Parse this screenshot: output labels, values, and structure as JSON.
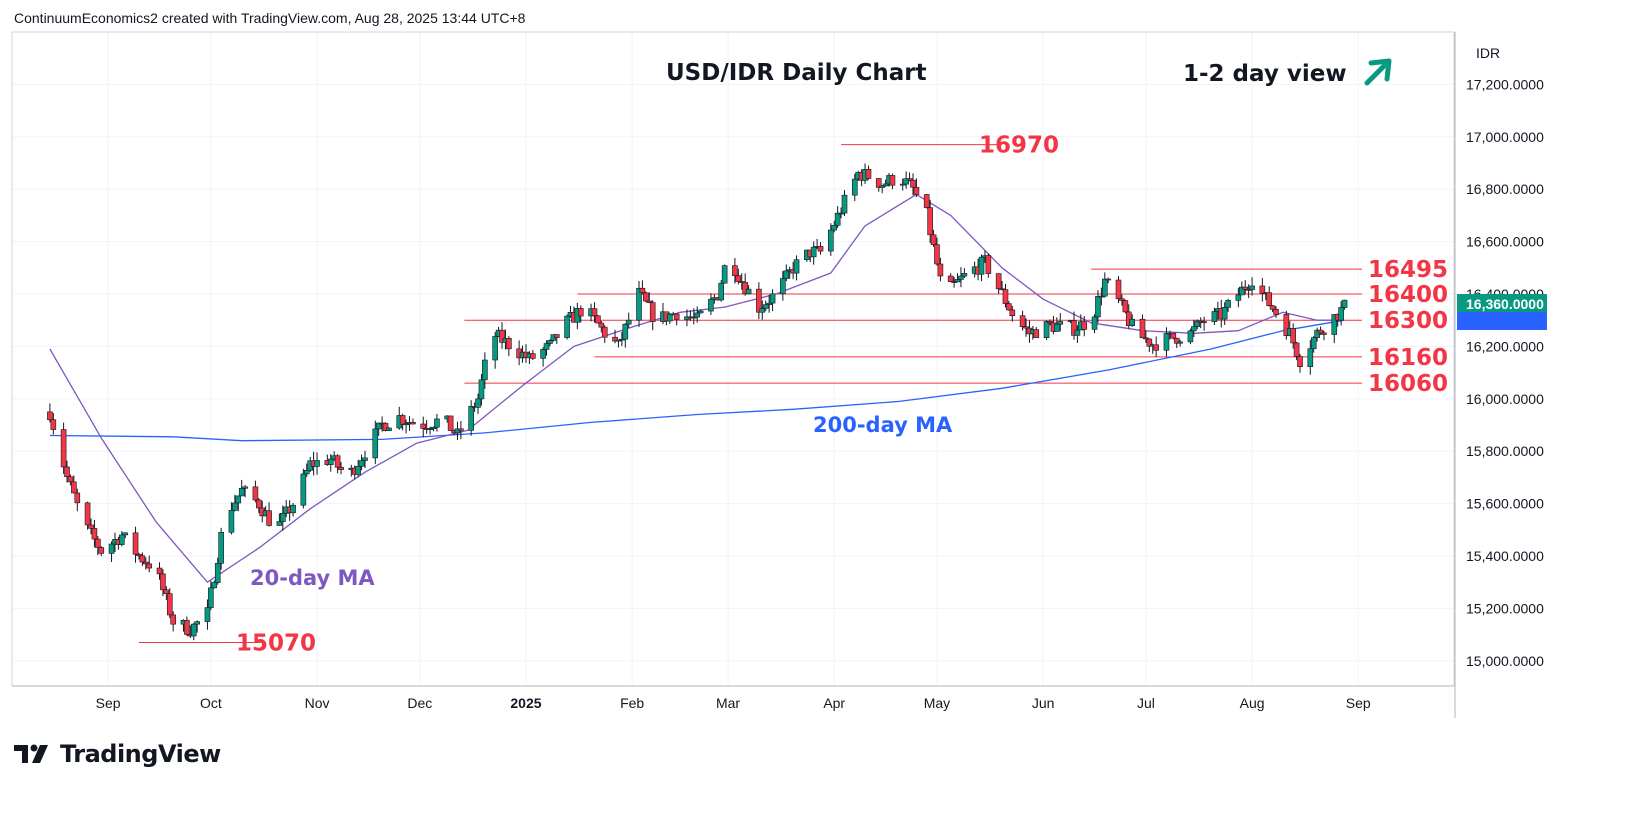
{
  "attribution": "ContinuumEconomics2 created with TradingView.com, Aug 28, 2025 13:44 UTC+8",
  "logo_text": "TradingView",
  "currency_label": "IDR",
  "chart_title": "USD/IDR Daily Chart",
  "view_label": "1-2 day view",
  "colors": {
    "up": "#089981",
    "down": "#f23645",
    "ma200": "#2962ff",
    "ma20": "#7e57c2",
    "level": "#f23645",
    "arrow": "#089981"
  },
  "chart_data": {
    "type": "candlestick",
    "title": "USD/IDR Daily Chart",
    "ylim": [
      14900,
      17400
    ],
    "y_ticks": [
      "15,000.0000",
      "15,200.0000",
      "15,400.0000",
      "15,600.0000",
      "15,800.0000",
      "16,000.0000",
      "16,200.0000",
      "16,400.0000",
      "16,600.0000",
      "16,800.0000",
      "17,000.0000",
      "17,200.0000"
    ],
    "x_labels": [
      "Sep",
      "Oct",
      "Nov",
      "Dec",
      "2025",
      "Feb",
      "Mar",
      "Apr",
      "May",
      "Jun",
      "Jul",
      "Aug",
      "Sep"
    ],
    "last_price_label": "16,360.0000",
    "levels": [
      {
        "label": "16970",
        "value": 16970
      },
      {
        "label": "16495",
        "value": 16495
      },
      {
        "label": "16400",
        "value": 16400
      },
      {
        "label": "16300",
        "value": 16300
      },
      {
        "label": "16160",
        "value": 16160
      },
      {
        "label": "16060",
        "value": 16060
      },
      {
        "label": "15070",
        "value": 15070
      }
    ],
    "annotations": [
      "200-day MA",
      "20-day MA"
    ],
    "series": [
      {
        "name": "USD/IDR",
        "anchors": [
          [
            "2024-08-15",
            15950
          ],
          [
            "2024-08-20",
            15700
          ],
          [
            "2024-08-25",
            15520
          ],
          [
            "2024-08-30",
            15420
          ],
          [
            "2024-09-05",
            15480
          ],
          [
            "2024-09-10",
            15400
          ],
          [
            "2024-09-15",
            15350
          ],
          [
            "2024-09-20",
            15150
          ],
          [
            "2024-09-25",
            15120
          ],
          [
            "2024-09-30",
            15180
          ],
          [
            "2024-10-05",
            15550
          ],
          [
            "2024-10-10",
            15650
          ],
          [
            "2024-10-15",
            15600
          ],
          [
            "2024-10-20",
            15500
          ],
          [
            "2024-10-25",
            15600
          ],
          [
            "2024-10-30",
            15750
          ],
          [
            "2024-11-05",
            15770
          ],
          [
            "2024-11-10",
            15700
          ],
          [
            "2024-11-15",
            15800
          ],
          [
            "2024-11-20",
            15900
          ],
          [
            "2024-11-25",
            15930
          ],
          [
            "2024-12-01",
            15900
          ],
          [
            "2024-12-08",
            15920
          ],
          [
            "2024-12-12",
            15860
          ],
          [
            "2024-12-18",
            16000
          ],
          [
            "2024-12-22",
            16250
          ],
          [
            "2024-12-28",
            16200
          ],
          [
            "2025-01-02",
            16150
          ],
          [
            "2025-01-08",
            16200
          ],
          [
            "2025-01-12",
            16280
          ],
          [
            "2025-01-18",
            16350
          ],
          [
            "2025-01-24",
            16250
          ],
          [
            "2025-01-28",
            16200
          ],
          [
            "2025-02-03",
            16400
          ],
          [
            "2025-02-08",
            16300
          ],
          [
            "2025-02-14",
            16330
          ],
          [
            "2025-02-20",
            16300
          ],
          [
            "2025-02-26",
            16400
          ],
          [
            "2025-03-01",
            16550
          ],
          [
            "2025-03-05",
            16450
          ],
          [
            "2025-03-10",
            16350
          ],
          [
            "2025-03-15",
            16400
          ],
          [
            "2025-03-20",
            16500
          ],
          [
            "2025-03-25",
            16560
          ],
          [
            "2025-03-28",
            16560
          ],
          [
            "2025-04-08",
            16860
          ],
          [
            "2025-04-11",
            16850
          ],
          [
            "2025-04-15",
            16820
          ],
          [
            "2025-04-20",
            16850
          ],
          [
            "2025-04-24",
            16800
          ],
          [
            "2025-04-28",
            16700
          ],
          [
            "2025-05-02",
            16450
          ],
          [
            "2025-05-05",
            16420
          ],
          [
            "2025-05-10",
            16480
          ],
          [
            "2025-05-15",
            16520
          ],
          [
            "2025-05-20",
            16400
          ],
          [
            "2025-05-24",
            16300
          ],
          [
            "2025-05-28",
            16250
          ],
          [
            "2025-06-03",
            16280
          ],
          [
            "2025-06-10",
            16270
          ],
          [
            "2025-06-15",
            16300
          ],
          [
            "2025-06-19",
            16450
          ],
          [
            "2025-06-23",
            16370
          ],
          [
            "2025-06-28",
            16250
          ],
          [
            "2025-07-03",
            16210
          ],
          [
            "2025-07-08",
            16230
          ],
          [
            "2025-07-14",
            16250
          ],
          [
            "2025-07-18",
            16300
          ],
          [
            "2025-07-23",
            16320
          ],
          [
            "2025-07-28",
            16400
          ],
          [
            "2025-08-01",
            16460
          ],
          [
            "2025-08-05",
            16380
          ],
          [
            "2025-08-08",
            16330
          ],
          [
            "2025-08-12",
            16250
          ],
          [
            "2025-08-15",
            16150
          ],
          [
            "2025-08-20",
            16250
          ],
          [
            "2025-08-24",
            16300
          ],
          [
            "2025-08-28",
            16350
          ]
        ]
      },
      {
        "name": "200-day MA",
        "anchors": [
          [
            "2024-08-15",
            15860
          ],
          [
            "2024-09-20",
            15855
          ],
          [
            "2024-10-10",
            15840
          ],
          [
            "2024-11-20",
            15845
          ],
          [
            "2024-12-20",
            15870
          ],
          [
            "2025-01-20",
            15910
          ],
          [
            "2025-02-20",
            15940
          ],
          [
            "2025-03-20",
            15960
          ],
          [
            "2025-04-20",
            15990
          ],
          [
            "2025-05-20",
            16040
          ],
          [
            "2025-06-20",
            16110
          ],
          [
            "2025-07-20",
            16190
          ],
          [
            "2025-08-10",
            16260
          ],
          [
            "2025-08-28",
            16300
          ]
        ]
      },
      {
        "name": "20-day MA",
        "anchors": [
          [
            "2024-08-15",
            16190
          ],
          [
            "2024-08-30",
            15850
          ],
          [
            "2024-09-15",
            15530
          ],
          [
            "2024-09-30",
            15300
          ],
          [
            "2024-10-15",
            15430
          ],
          [
            "2024-10-30",
            15580
          ],
          [
            "2024-11-15",
            15720
          ],
          [
            "2024-11-30",
            15830
          ],
          [
            "2024-12-15",
            15880
          ],
          [
            "2024-12-31",
            16050
          ],
          [
            "2025-01-15",
            16200
          ],
          [
            "2025-01-31",
            16270
          ],
          [
            "2025-02-15",
            16330
          ],
          [
            "2025-02-28",
            16350
          ],
          [
            "2025-03-15",
            16400
          ],
          [
            "2025-03-31",
            16480
          ],
          [
            "2025-04-10",
            16660
          ],
          [
            "2025-04-25",
            16780
          ],
          [
            "2025-05-05",
            16700
          ],
          [
            "2025-05-20",
            16500
          ],
          [
            "2025-06-01",
            16380
          ],
          [
            "2025-06-15",
            16290
          ],
          [
            "2025-06-30",
            16260
          ],
          [
            "2025-07-15",
            16250
          ],
          [
            "2025-07-28",
            16260
          ],
          [
            "2025-08-10",
            16330
          ],
          [
            "2025-08-20",
            16300
          ],
          [
            "2025-08-28",
            16300
          ]
        ]
      }
    ]
  }
}
